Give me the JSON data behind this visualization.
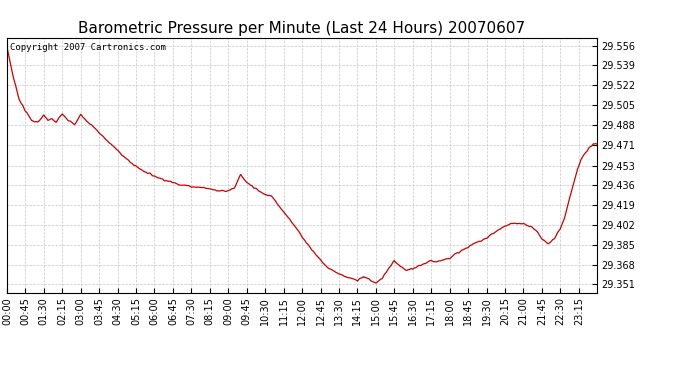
{
  "title": "Barometric Pressure per Minute (Last 24 Hours) 20070607",
  "copyright_text": "Copyright 2007 Cartronics.com",
  "line_color": "#cc0000",
  "background_color": "#ffffff",
  "grid_color": "#c8c8c8",
  "y_ticks": [
    29.351,
    29.368,
    29.385,
    29.402,
    29.419,
    29.436,
    29.453,
    29.471,
    29.488,
    29.505,
    29.522,
    29.539,
    29.556
  ],
  "ylim": [
    29.344,
    29.563
  ],
  "x_tick_labels": [
    "00:00",
    "00:45",
    "01:30",
    "02:15",
    "03:00",
    "03:45",
    "04:30",
    "05:15",
    "06:00",
    "06:45",
    "07:30",
    "08:15",
    "09:00",
    "09:45",
    "10:30",
    "11:15",
    "12:00",
    "12:45",
    "13:30",
    "14:15",
    "15:00",
    "15:45",
    "16:30",
    "17:15",
    "18:00",
    "18:45",
    "19:30",
    "20:15",
    "21:00",
    "21:45",
    "22:30",
    "23:15"
  ],
  "title_fontsize": 11,
  "copyright_fontsize": 6.5,
  "tick_fontsize": 7
}
